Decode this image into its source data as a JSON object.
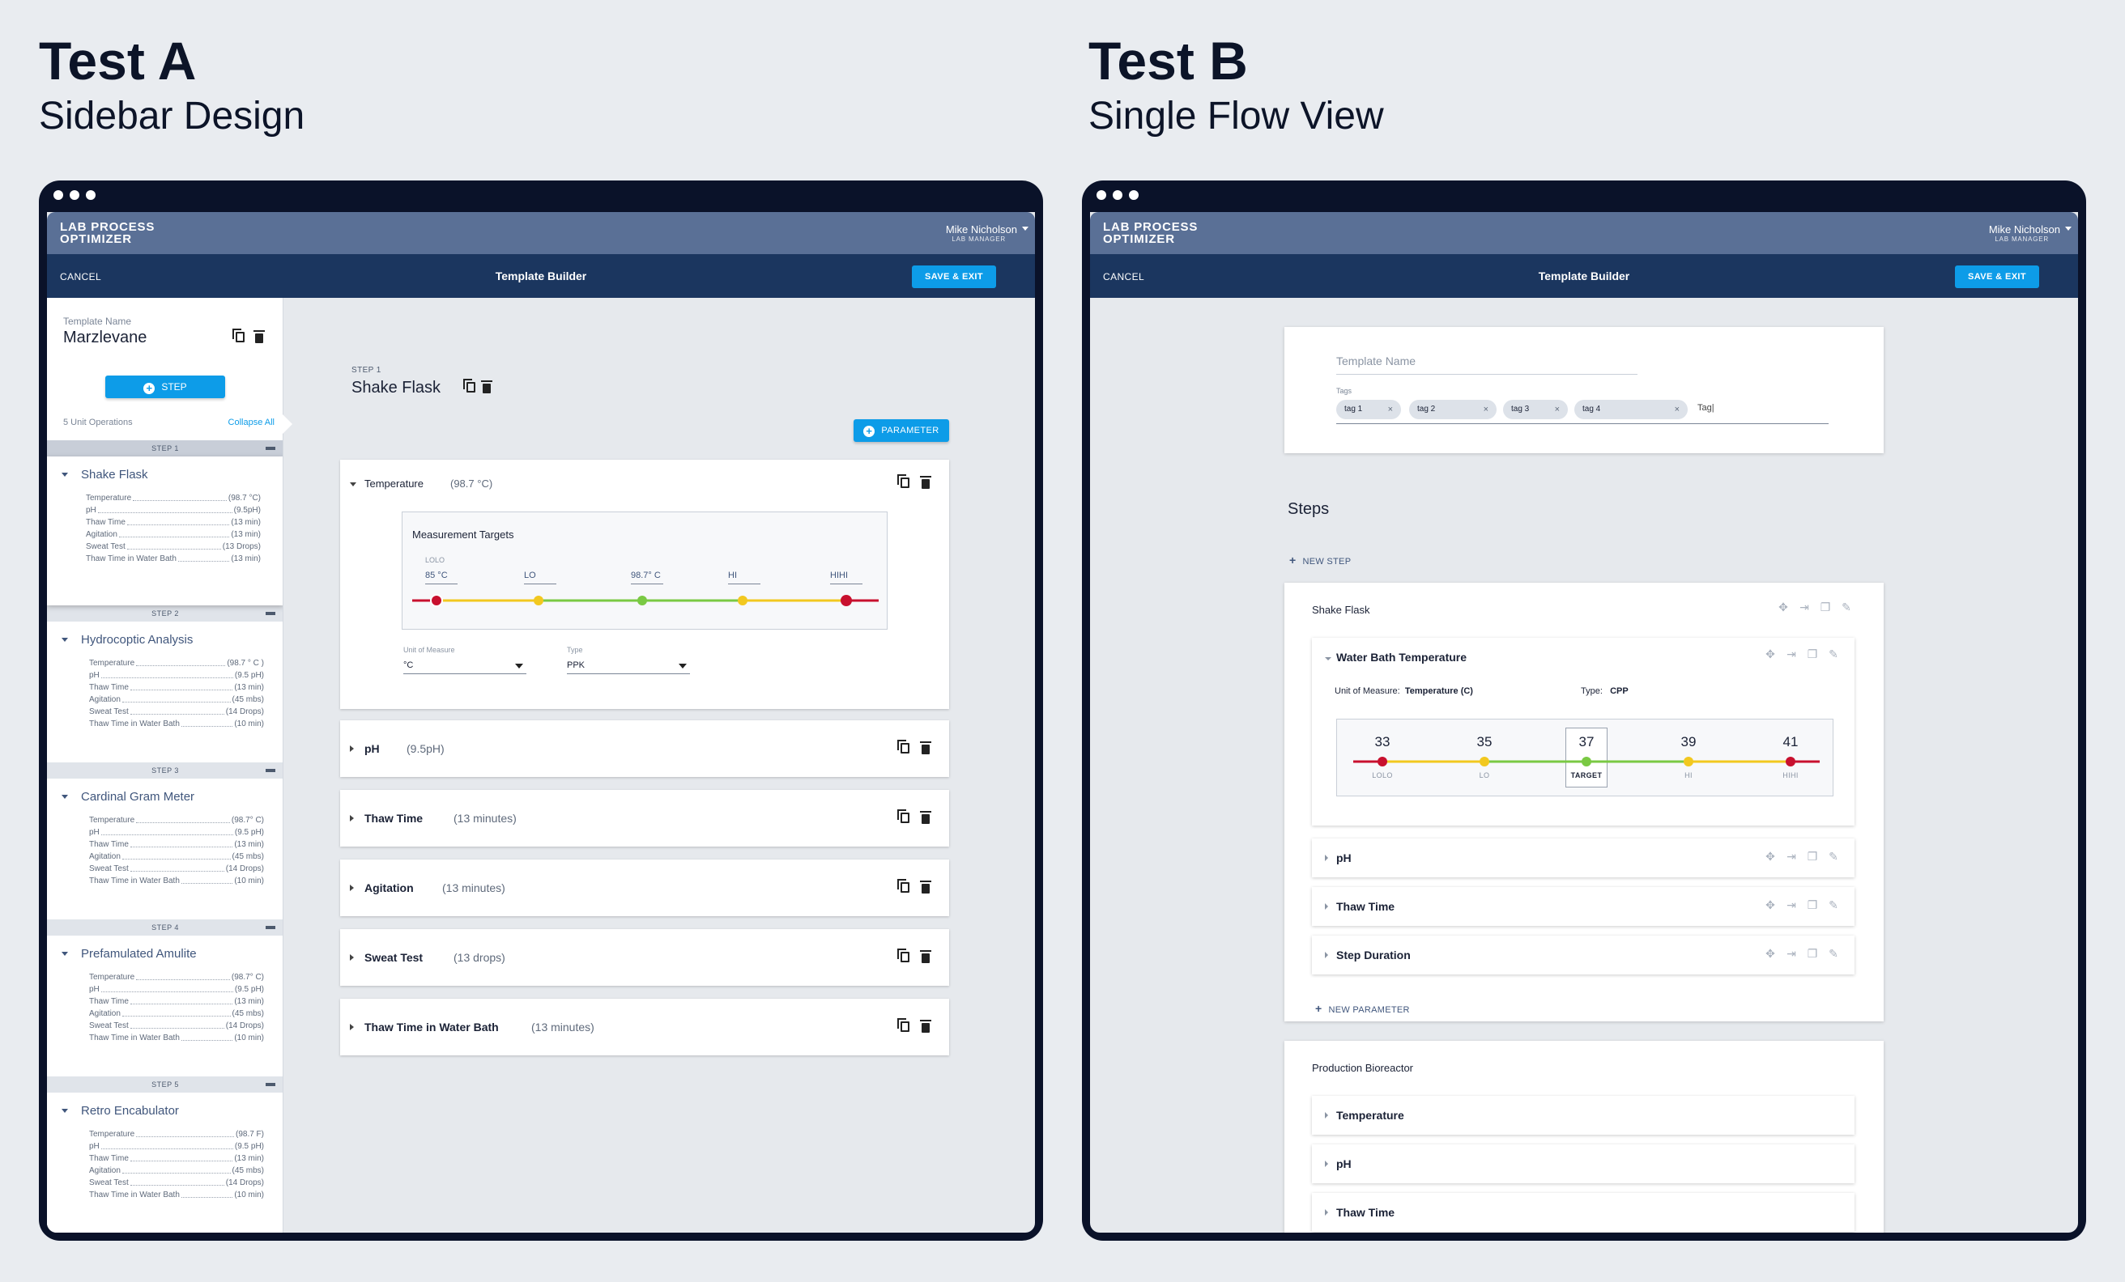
{
  "tests": [
    {
      "title": "Test A",
      "subtitle": "Sidebar Design"
    },
    {
      "title": "Test B",
      "subtitle": "Single Flow View"
    }
  ],
  "app": {
    "logo_line1": "LAB PROCESS",
    "logo_line2": "OPTIMIZER",
    "user_name": "Mike Nicholson",
    "user_role": "LAB MANAGER",
    "cancel": "CANCEL",
    "page_title": "Template Builder",
    "save_exit": "SAVE & EXIT"
  },
  "test_a": {
    "sidebar": {
      "template_name_label": "Template Name",
      "template_name": "Marzlevane",
      "step_button": "STEP",
      "unit_ops": "5 Unit Operations",
      "collapse_all": "Collapse All",
      "steps": [
        {
          "header": "STEP 1",
          "name": "Shake Flask",
          "params": [
            {
              "k": "Temperature",
              "v": "(98.7 °C)"
            },
            {
              "k": "pH",
              "v": "(9.5pH)"
            },
            {
              "k": "Thaw Time",
              "v": "(13 min)"
            },
            {
              "k": "Agitation",
              "v": "(13 min)"
            },
            {
              "k": "Sweat Test",
              "v": "(13 Drops)"
            },
            {
              "k": "Thaw Time in Water Bath",
              "v": "(13 min)"
            }
          ]
        },
        {
          "header": "STEP 2",
          "name": "Hydrocoptic Analysis",
          "params": [
            {
              "k": "Temperature",
              "v": "(98.7 ° C )"
            },
            {
              "k": "pH",
              "v": "(9.5 pH)"
            },
            {
              "k": "Thaw Time",
              "v": "(13 min)"
            },
            {
              "k": "Agitation",
              "v": "(45 mbs)"
            },
            {
              "k": "Sweat Test",
              "v": "(14 Drops)"
            },
            {
              "k": "Thaw Time in Water Bath",
              "v": "(10 min)"
            }
          ]
        },
        {
          "header": "STEP 3",
          "name": "Cardinal Gram Meter",
          "params": [
            {
              "k": "Temperature",
              "v": "(98.7° C)"
            },
            {
              "k": "pH",
              "v": "(9.5 pH)"
            },
            {
              "k": "Thaw Time",
              "v": "(13 min)"
            },
            {
              "k": "Agitation",
              "v": "(45 mbs)"
            },
            {
              "k": "Sweat Test",
              "v": "(14 Drops)"
            },
            {
              "k": "Thaw Time in Water Bath",
              "v": "(10 min)"
            }
          ]
        },
        {
          "header": "STEP 4",
          "name": "Prefamulated Amulite",
          "params": [
            {
              "k": "Temperature",
              "v": "(98.7° C)"
            },
            {
              "k": "pH",
              "v": "(9.5 pH)"
            },
            {
              "k": "Thaw Time",
              "v": "(13 min)"
            },
            {
              "k": "Agitation",
              "v": "(45 mbs)"
            },
            {
              "k": "Sweat Test",
              "v": "(14 Drops)"
            },
            {
              "k": "Thaw Time in Water Bath",
              "v": "(10 min)"
            }
          ]
        },
        {
          "header": "STEP 5",
          "name": "Retro Encabulator",
          "params": [
            {
              "k": "Temperature",
              "v": "(98.7 F)"
            },
            {
              "k": "pH",
              "v": "(9.5 pH)"
            },
            {
              "k": "Thaw Time",
              "v": "(13 min)"
            },
            {
              "k": "Agitation",
              "v": "(45 mbs)"
            },
            {
              "k": "Sweat Test",
              "v": "(14 Drops)"
            },
            {
              "k": "Thaw Time in Water Bath",
              "v": "(10 min)"
            }
          ]
        }
      ]
    },
    "main": {
      "step_label": "STEP 1",
      "step_name": "Shake Flask",
      "parameter_button": "PARAMETER",
      "params": [
        {
          "name": "Temperature",
          "value": "(98.7 °C)"
        },
        {
          "name": "pH",
          "value": "(9.5pH)"
        },
        {
          "name": "Thaw Time",
          "value": "(13 minutes)"
        },
        {
          "name": "Agitation",
          "value": "(13 minutes)"
        },
        {
          "name": "Sweat Test",
          "value": "(13 drops)"
        },
        {
          "name": "Thaw Time in Water Bath",
          "value": "(13 minutes)"
        }
      ],
      "targets": {
        "title": "Measurement Targets",
        "lolo_caption": "LOLO",
        "labels": [
          "85 °C",
          "LO",
          "98.7° C",
          "HI",
          "HIHI"
        ],
        "unit_label": "Unit of Measure",
        "unit_value": "°C",
        "type_label": "Type",
        "type_value": "PPK"
      }
    }
  },
  "test_b": {
    "template_name_placeholder": "Template Name",
    "tags_label": "Tags",
    "tags": [
      "tag 1",
      "tag 2",
      "tag 3",
      "tag 4"
    ],
    "tag_input": "Tag|",
    "steps_title": "Steps",
    "new_step": "NEW STEP",
    "step1": {
      "name": "Shake Flask",
      "expanded_param": "Water Bath Temperature",
      "uom_label": "Unit of Measure:",
      "uom_value": "Temperature (C)",
      "type_label": "Type:",
      "type_value": "CPP",
      "gauge": {
        "values": [
          "33",
          "35",
          "37",
          "39",
          "41"
        ],
        "labels": [
          "LOLO",
          "LO",
          "TARGET",
          "HI",
          "HIHI"
        ]
      },
      "other_params": [
        "pH",
        "Thaw Time",
        "Step Duration"
      ],
      "new_param": "NEW PARAMETER"
    },
    "step2": {
      "name": "Production Bioreactor",
      "params": [
        "Temperature",
        "pH",
        "Thaw Time"
      ]
    }
  },
  "colors": {
    "accent": "#0d9ce8",
    "nav": "#1b365f",
    "header": "#5a7096",
    "good": "#7ac943",
    "warn": "#f2c81f",
    "bad": "#c8102e"
  }
}
